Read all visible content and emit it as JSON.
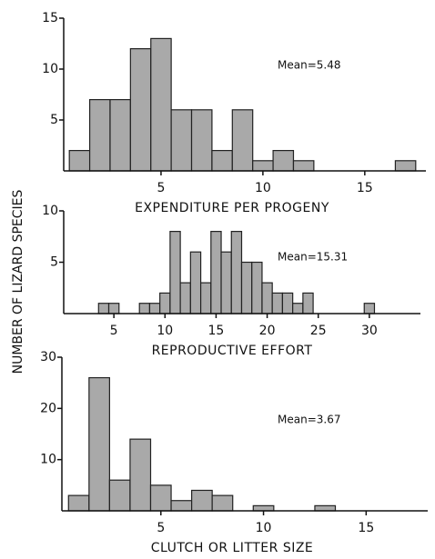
{
  "ylabel": "NUMBER OF LIZARD SPECIES",
  "chart_data": [
    {
      "type": "histogram",
      "xlabel": "EXPENDITURE PER PROGENY",
      "annotation": "Mean=5.48",
      "bins": [
        0.5,
        1.5,
        2.5,
        3.5,
        4.5,
        5.5,
        6.5,
        7.5,
        8.5,
        9.5,
        10.5,
        11.5,
        12.5,
        13.5,
        14.5,
        15.5,
        16.5,
        17.5
      ],
      "values": [
        2,
        7,
        7,
        12,
        13,
        6,
        6,
        2,
        6,
        1,
        2,
        1,
        0,
        0,
        0,
        0,
        1
      ],
      "color": "#a9a9a9",
      "xlim": [
        0,
        18
      ],
      "ylim": [
        0,
        15
      ],
      "xticks": [
        5,
        10,
        15
      ],
      "yticks": [
        5,
        10,
        15
      ]
    },
    {
      "type": "histogram",
      "xlabel": "REPRODUCTIVE EFFORT",
      "annotation": "Mean=15.31",
      "bins": [
        3.5,
        4.5,
        5.5,
        6.5,
        7.5,
        8.5,
        9.5,
        10.5,
        11.5,
        12.5,
        13.5,
        14.5,
        15.5,
        16.5,
        17.5,
        18.5,
        19.5,
        20.5,
        21.5,
        22.5,
        23.5,
        24.5,
        25.5,
        26.5,
        27.5,
        28.5,
        29.5,
        30.5
      ],
      "values": [
        1,
        1,
        0,
        0,
        1,
        1,
        2,
        8,
        3,
        6,
        3,
        8,
        6,
        8,
        5,
        5,
        3,
        2,
        2,
        1,
        2,
        0,
        0,
        0,
        0,
        0,
        1
      ],
      "color": "#a9a9a9",
      "xlim": [
        0,
        35
      ],
      "ylim": [
        0,
        10
      ],
      "xticks": [
        5,
        10,
        15,
        20,
        25,
        30
      ],
      "yticks": [
        5,
        10
      ]
    },
    {
      "type": "histogram",
      "xlabel": "CLUTCH OR LITTER SIZE",
      "annotation": "Mean=3.67",
      "bins": [
        0.5,
        1.5,
        2.5,
        3.5,
        4.5,
        5.5,
        6.5,
        7.5,
        8.5,
        9.5,
        10.5,
        11.5,
        12.5,
        13.5
      ],
      "values": [
        3,
        26,
        6,
        14,
        5,
        2,
        4,
        3,
        0,
        1,
        0,
        0,
        1
      ],
      "color": "#a9a9a9",
      "xlim": [
        0,
        18
      ],
      "ylim": [
        0,
        30
      ],
      "xticks": [
        5,
        10,
        15
      ],
      "yticks": [
        10,
        20,
        30
      ]
    }
  ]
}
